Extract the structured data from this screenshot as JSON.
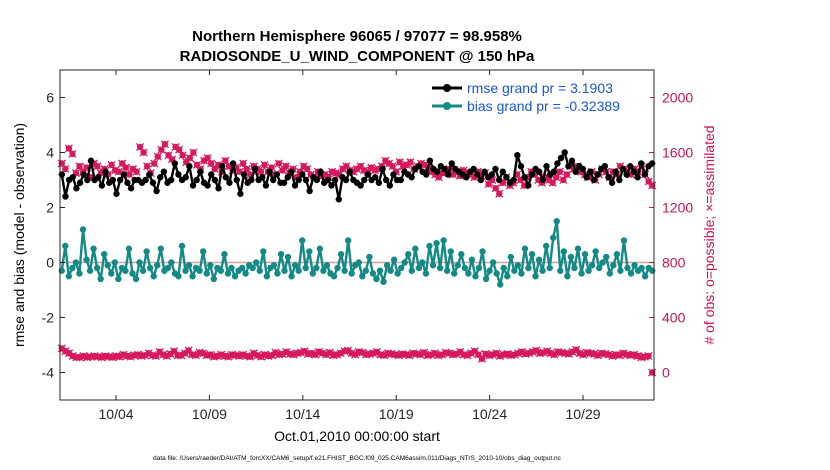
{
  "chart_data": {
    "type": "line",
    "title": "Northern Hemisphere 96065 / 97077 = 98.958%",
    "subtitle": "RADIOSONDE_U_WIND_COMPONENT @ 150 hPa",
    "xlabel": "Oct.01,2010 00:00:00 start",
    "ylabel_left": "rmse and bias (model - observation)",
    "ylabel_right": "# of obs: o=possible; ×=assimilated",
    "xlim": [
      1,
      32.8
    ],
    "ylim_left": [
      -5,
      7
    ],
    "ylim_right": [
      -200,
      2200
    ],
    "x_ticks": [
      4,
      9,
      14,
      19,
      24,
      29
    ],
    "x_tick_labels": [
      "10/04",
      "10/09",
      "10/14",
      "10/19",
      "10/24",
      "10/29"
    ],
    "y_ticks_left": [
      -4,
      -2,
      0,
      2,
      4,
      6
    ],
    "y_tick_labels_left": [
      "-4",
      "-2",
      "0",
      "2",
      "4",
      "6"
    ],
    "y_ticks_right": [
      0,
      400,
      800,
      1200,
      1600,
      2000
    ],
    "y_tick_labels_right": [
      "0",
      "400",
      "800",
      "1200",
      "1600",
      "2000"
    ],
    "zero_line": 0,
    "legend": {
      "position": "top-right",
      "entries": [
        "rmse grand pr = 3.1903",
        "bias grand pr = -0.32389"
      ]
    },
    "colors": {
      "rmse": "#000000",
      "bias": "#138a85",
      "obs": "#d6195f",
      "zero_line": "#d9a0a0",
      "legend_text": "#1a56d6",
      "right_axis": "#cc1155"
    },
    "series": [
      {
        "name": "rmse",
        "axis": "left",
        "values": [
          3.2,
          2.4,
          3.0,
          3.1,
          2.7,
          2.9,
          3.2,
          3.0,
          3.7,
          3.0,
          3.1,
          2.8,
          3.3,
          2.9,
          3.0,
          2.5,
          3.0,
          3.2,
          2.9,
          2.7,
          3.0,
          3.0,
          2.9,
          3.0,
          3.2,
          2.9,
          2.6,
          3.1,
          3.3,
          2.9,
          3.0,
          3.6,
          3.2,
          3.0,
          3.1,
          3.5,
          2.8,
          3.0,
          3.3,
          2.9,
          2.8,
          3.2,
          3.0,
          2.7,
          3.5,
          3.1,
          2.9,
          3.6,
          3.0,
          2.5,
          3.2,
          2.9,
          3.0,
          3.4,
          3.0,
          3.1,
          2.8,
          3.3,
          3.0,
          3.2,
          2.9,
          2.9,
          3.1,
          3.3,
          2.8,
          3.0,
          3.2,
          3.0,
          2.6,
          3.1,
          3.0,
          3.3,
          2.9,
          3.0,
          2.8,
          3.0,
          2.3,
          3.1,
          3.0,
          3.3,
          3.0,
          2.9,
          2.8,
          3.0,
          3.2,
          3.0,
          3.1,
          2.9,
          3.4,
          3.0,
          2.8,
          3.2,
          3.0,
          3.0,
          3.3,
          3.2,
          3.1,
          3.4,
          3.5,
          3.3,
          3.2,
          3.7,
          3.4,
          3.3,
          3.5,
          3.4,
          3.2,
          3.6,
          3.4,
          3.3,
          3.2,
          3.1,
          3.3,
          3.4,
          3.2,
          3.0,
          3.3,
          3.1,
          3.2,
          3.4,
          3.0,
          3.3,
          3.1,
          2.9,
          3.0,
          3.9,
          3.5,
          3.1,
          2.8,
          3.2,
          3.4,
          3.3,
          3.0,
          3.5,
          3.2,
          3.3,
          3.6,
          3.8,
          4.0,
          3.5,
          3.7,
          3.3,
          3.5,
          3.4,
          3.1,
          3.3,
          3.0,
          3.2,
          3.4,
          3.5,
          3.1,
          2.9,
          3.3,
          3.0,
          3.4,
          3.2,
          3.5,
          3.3,
          3.1,
          3.6,
          3.2,
          3.5,
          3.6
        ]
      },
      {
        "name": "bias",
        "axis": "left",
        "values": [
          -0.3,
          0.6,
          -0.5,
          -0.2,
          0.0,
          -0.4,
          1.2,
          0.1,
          -0.3,
          0.5,
          -0.2,
          -0.6,
          0.3,
          -0.1,
          -0.4,
          0.0,
          -0.6,
          -0.2,
          -0.3,
          0.5,
          -0.4,
          -0.6,
          0.0,
          -0.3,
          0.4,
          -0.2,
          -0.5,
          -0.1,
          0.5,
          -0.3,
          -0.2,
          0.0,
          -0.4,
          -0.5,
          0.6,
          -0.3,
          -0.1,
          -0.5,
          -0.2,
          -0.3,
          0.4,
          -0.4,
          -0.1,
          -0.6,
          -0.2,
          -0.3,
          0.3,
          -0.4,
          -0.2,
          -0.5,
          -0.3,
          -0.2,
          -0.4,
          -0.1,
          -0.2,
          0.0,
          -0.3,
          0.4,
          -0.5,
          -0.2,
          -0.1,
          -0.4,
          0.3,
          -0.3,
          0.2,
          -0.5,
          -0.1,
          -0.3,
          0.8,
          -0.2,
          0.4,
          -0.4,
          -0.2,
          0.5,
          -0.3,
          -0.1,
          -0.4,
          -0.5,
          -0.2,
          0.3,
          -0.3,
          0.8,
          -0.4,
          -0.1,
          0.0,
          -0.5,
          -0.3,
          0.2,
          -0.4,
          -0.6,
          -0.3,
          -0.7,
          -0.1,
          -0.3,
          0.1,
          -0.4,
          -0.2,
          0.0,
          0.3,
          -0.3,
          0.5,
          -0.2,
          0.0,
          -0.4,
          0.6,
          -0.1,
          0.7,
          -0.2,
          0.8,
          -0.3,
          0.4,
          -0.4,
          -0.1,
          0.3,
          -0.2,
          -0.4,
          0.1,
          -0.5,
          -0.2,
          0.4,
          -0.6,
          -0.3,
          0.0,
          -0.4,
          -0.8,
          -0.2,
          -0.5,
          0.2,
          -0.3,
          -0.1,
          -0.4,
          0.5,
          -0.2,
          0.3,
          -0.5,
          0.1,
          -0.3,
          0.6,
          -0.2,
          0.9,
          1.5,
          -0.3,
          0.4,
          -0.5,
          0.2,
          -0.2,
          0.5,
          -0.4,
          0.3,
          -0.3,
          -0.1,
          0.4,
          -0.2,
          0.0,
          0.2,
          -0.4,
          -0.1,
          0.3,
          -0.3,
          0.8,
          -0.2,
          -0.4,
          -0.1,
          -0.3,
          -0.2,
          -0.5,
          -0.2,
          -0.3
        ]
      },
      {
        "name": "obs_assimilated",
        "axis": "right",
        "values": [
          1520,
          1480,
          1630,
          1590,
          1450,
          1500,
          1460,
          1490,
          1420,
          1520,
          1500,
          1450,
          1480,
          1440,
          1510,
          1470,
          1460,
          1520,
          1490,
          1440,
          1480,
          1460,
          1640,
          1600,
          1500,
          1450,
          1520,
          1570,
          1620,
          1660,
          1580,
          1550,
          1640,
          1620,
          1580,
          1530,
          1560,
          1600,
          1510,
          1480,
          1540,
          1560,
          1520,
          1480,
          1510,
          1460,
          1540,
          1500,
          1470,
          1490,
          1460,
          1520,
          1480,
          1440,
          1500,
          1480,
          1460,
          1510,
          1460,
          1490,
          1440,
          1520,
          1470,
          1500,
          1450,
          1480,
          1420,
          1460,
          1500,
          1480,
          1440,
          1420,
          1460,
          1430,
          1440,
          1420,
          1460,
          1450,
          1440,
          1480,
          1500,
          1470,
          1460,
          1480,
          1500,
          1470,
          1460,
          1490,
          1470,
          1480,
          1500,
          1540,
          1520,
          1500,
          1460,
          1530,
          1500,
          1510,
          1530,
          1480,
          1500,
          1520,
          1510,
          1480,
          1460,
          1440,
          1420,
          1450,
          1460,
          1480,
          1440,
          1460,
          1430,
          1470,
          1450,
          1440,
          1420,
          1460,
          1430,
          1450,
          1370,
          1400,
          1340,
          1300,
          1380,
          1420,
          1360,
          1380,
          1440,
          1400,
          1360,
          1420,
          1460,
          1440,
          1400,
          1380,
          1420,
          1400,
          1380,
          1420,
          1460,
          1400,
          1440,
          1500,
          1480,
          1500,
          1460,
          1440,
          1420,
          1460,
          1400,
          1440,
          1480,
          1460,
          1420,
          1460,
          1440,
          1500,
          1480,
          1460,
          1440,
          1480,
          1460,
          1500,
          1440,
          1390,
          1360
        ]
      },
      {
        "name": "obs_possible",
        "axis": "right",
        "values": [
          175,
          155,
          140,
          120,
          110,
          110,
          120,
          110,
          115,
          120,
          115,
          110,
          120,
          115,
          110,
          120,
          115,
          130,
          120,
          115,
          125,
          130,
          120,
          125,
          140,
          125,
          120,
          150,
          130,
          120,
          135,
          155,
          125,
          125,
          140,
          160,
          130,
          125,
          145,
          140,
          125,
          130,
          115,
          120,
          130,
          120,
          115,
          130,
          125,
          120,
          130,
          120,
          115,
          140,
          125,
          115,
          130,
          120,
          125,
          145,
          130,
          135,
          150,
          135,
          130,
          140,
          145,
          155,
          135,
          140,
          130,
          150,
          140,
          130,
          145,
          125,
          130,
          140,
          155,
          160,
          140,
          130,
          150,
          145,
          130,
          135,
          140,
          150,
          130,
          125,
          140,
          135,
          130,
          125,
          135,
          130,
          125,
          140,
          135,
          130,
          145,
          125,
          130,
          140,
          125,
          130,
          145,
          140,
          130,
          135,
          150,
          130,
          125,
          140,
          155,
          130,
          100,
          135,
          125,
          130,
          140,
          120,
          130,
          135,
          125,
          130,
          140,
          150,
          135,
          140,
          150,
          160,
          140,
          145,
          155,
          140,
          130,
          150,
          145,
          140,
          135,
          150,
          165,
          140,
          130,
          145,
          140,
          135,
          125,
          140,
          135,
          130,
          120,
          130,
          125,
          140,
          130,
          125,
          130,
          120,
          110,
          115,
          120,
          0
        ]
      }
    ],
    "footer": "data file: /Users/raeder/DAI/ATM_forcXX/CAM6_setup/f.e21.FHIST_BGC.f09_025.CAM6assim.011/Diags_NTrS_2010-10/obs_diag_output.nc"
  }
}
